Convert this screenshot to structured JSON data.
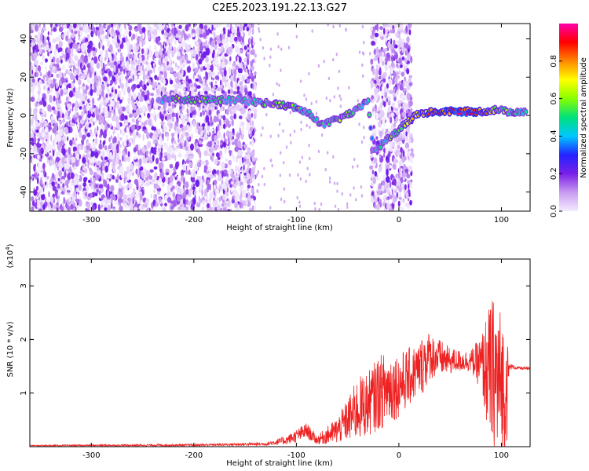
{
  "title": "C2E5.2023.191.22.13.G27",
  "chart_data": [
    {
      "type": "heatmap",
      "xlabel": "Height of straight line (km)",
      "ylabel": "Frequency (Hz)",
      "xlim": [
        -360,
        128
      ],
      "ylim": [
        -50,
        48
      ],
      "xticks": [
        -300,
        -200,
        -100,
        0,
        100
      ],
      "yticks": [
        -40,
        -20,
        0,
        20,
        40
      ],
      "colorbar": {
        "label": "Normalized spectral amplitude",
        "range": [
          0,
          1
        ],
        "ticks": [
          0.0,
          0.2,
          0.4,
          0.6,
          0.8
        ],
        "colors": [
          "#f4ecff",
          "#c89bf0",
          "#7a1fe8",
          "#2222ff",
          "#00c8ff",
          "#00e07a",
          "#88ff00",
          "#ffff00",
          "#ff8800",
          "#ff0000",
          "#ff00aa"
        ]
      },
      "noise_regions": [
        {
          "x": [
            -360,
            -140
          ],
          "freq": [
            -50,
            48
          ],
          "level": "dense"
        },
        {
          "x": [
            -27,
            13
          ],
          "freq": [
            -50,
            48
          ],
          "level": "dense"
        }
      ],
      "signal_track": [
        {
          "x": -235,
          "freq": 8,
          "amp": 0.3
        },
        {
          "x": -220,
          "freq": 9,
          "amp": 0.55
        },
        {
          "x": -200,
          "freq": 8,
          "amp": 0.6
        },
        {
          "x": -180,
          "freq": 8,
          "amp": 0.5
        },
        {
          "x": -155,
          "freq": 8,
          "amp": 0.4
        },
        {
          "x": -140,
          "freq": 7,
          "amp": 0.45
        },
        {
          "x": -120,
          "freq": 6,
          "amp": 0.6
        },
        {
          "x": -100,
          "freq": 4,
          "amp": 0.55
        },
        {
          "x": -85,
          "freq": 0,
          "amp": 0.5
        },
        {
          "x": -75,
          "freq": -5,
          "amp": 0.45
        },
        {
          "x": -60,
          "freq": -2,
          "amp": 0.55
        },
        {
          "x": -40,
          "freq": 3,
          "amp": 0.5
        },
        {
          "x": -30,
          "freq": 8,
          "amp": 0.45
        },
        {
          "x": -25,
          "freq": -19,
          "amp": 0.4
        },
        {
          "x": 18,
          "freq": 1,
          "amp": 0.7
        },
        {
          "x": 40,
          "freq": 2,
          "amp": 0.85
        },
        {
          "x": 60,
          "freq": 2,
          "amp": 0.9
        },
        {
          "x": 80,
          "freq": 2,
          "amp": 0.85
        },
        {
          "x": 95,
          "freq": 3,
          "amp": 0.6
        },
        {
          "x": 105,
          "freq": 2,
          "amp": 0.55
        },
        {
          "x": 125,
          "freq": 2,
          "amp": 0.5
        }
      ]
    },
    {
      "type": "line",
      "xlabel": "Height of straight line (km)",
      "ylabel": "SNR (10 * v/v)",
      "unit_label": "(x10",
      "unit_exp": "4",
      "unit_close": ")",
      "xlim": [
        -360,
        128
      ],
      "ylim": [
        0,
        3.5
      ],
      "xticks": [
        -300,
        -200,
        -100,
        0,
        100
      ],
      "yticks": [
        1,
        2,
        3
      ],
      "color": "#ee2222",
      "envelope": {
        "x": [
          -360,
          -200,
          -130,
          -110,
          -100,
          -90,
          -80,
          -60,
          -50,
          -40,
          -30,
          -20,
          -10,
          0,
          10,
          20,
          25,
          30,
          40,
          50,
          60,
          70,
          80,
          85,
          90,
          95,
          100,
          105,
          108,
          115,
          128
        ],
        "y": [
          0.02,
          0.03,
          0.05,
          0.12,
          0.2,
          0.3,
          0.12,
          0.3,
          0.5,
          0.7,
          0.8,
          1.0,
          1.1,
          1.15,
          1.3,
          1.45,
          1.6,
          1.7,
          1.65,
          1.6,
          1.6,
          1.6,
          1.55,
          1.45,
          1.35,
          1.25,
          1.15,
          1.05,
          1.5,
          1.47,
          1.45
        ],
        "amplitude": [
          0.01,
          0.02,
          0.03,
          0.08,
          0.12,
          0.15,
          0.08,
          0.25,
          0.4,
          0.6,
          0.6,
          0.7,
          0.7,
          0.6,
          0.55,
          0.5,
          0.6,
          0.45,
          0.35,
          0.25,
          0.2,
          0.2,
          0.5,
          1.0,
          1.4,
          1.6,
          1.4,
          1.1,
          0.05,
          0.03,
          0.03
        ]
      }
    }
  ]
}
